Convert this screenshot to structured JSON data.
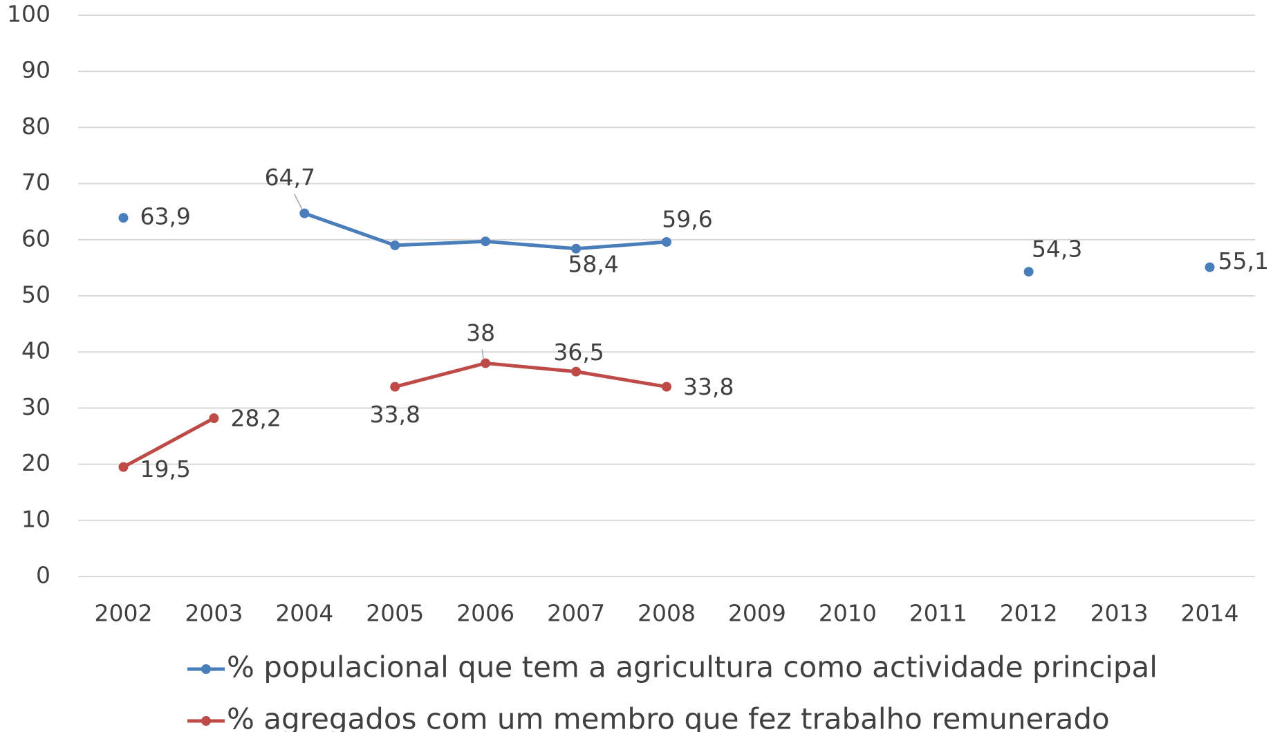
{
  "chart_data": {
    "type": "line",
    "categories": [
      "2002",
      "2003",
      "2004",
      "2005",
      "2006",
      "2007",
      "2008",
      "2009",
      "2010",
      "2011",
      "2012",
      "2013",
      "2014"
    ],
    "series": [
      {
        "name": "% populacional que tem a agricultura como actividade principal",
        "color": "#4a7ebb",
        "values": [
          63.9,
          null,
          64.7,
          59.0,
          59.7,
          58.4,
          59.6,
          null,
          null,
          null,
          54.3,
          null,
          55.1
        ],
        "value_labels": [
          "63,9",
          null,
          "64,7",
          null,
          null,
          "58,4",
          "59,6",
          null,
          null,
          null,
          "54,3",
          null,
          "55,1"
        ]
      },
      {
        "name": "% agregados com um membro que fez trabalho remunerado",
        "color": "#be4b48",
        "values": [
          19.5,
          28.2,
          null,
          33.8,
          38,
          36.5,
          33.8,
          null,
          null,
          null,
          null,
          null,
          null
        ],
        "value_labels": [
          "19,5",
          "28,2",
          null,
          "33,8",
          "38",
          "36,5",
          "33,8",
          null,
          null,
          null,
          null,
          null,
          null
        ]
      }
    ],
    "ylim": [
      0,
      100
    ],
    "yticks": [
      0,
      10,
      20,
      30,
      40,
      50,
      60,
      70,
      80,
      90,
      100
    ],
    "grid": true,
    "legend": "bottom"
  }
}
